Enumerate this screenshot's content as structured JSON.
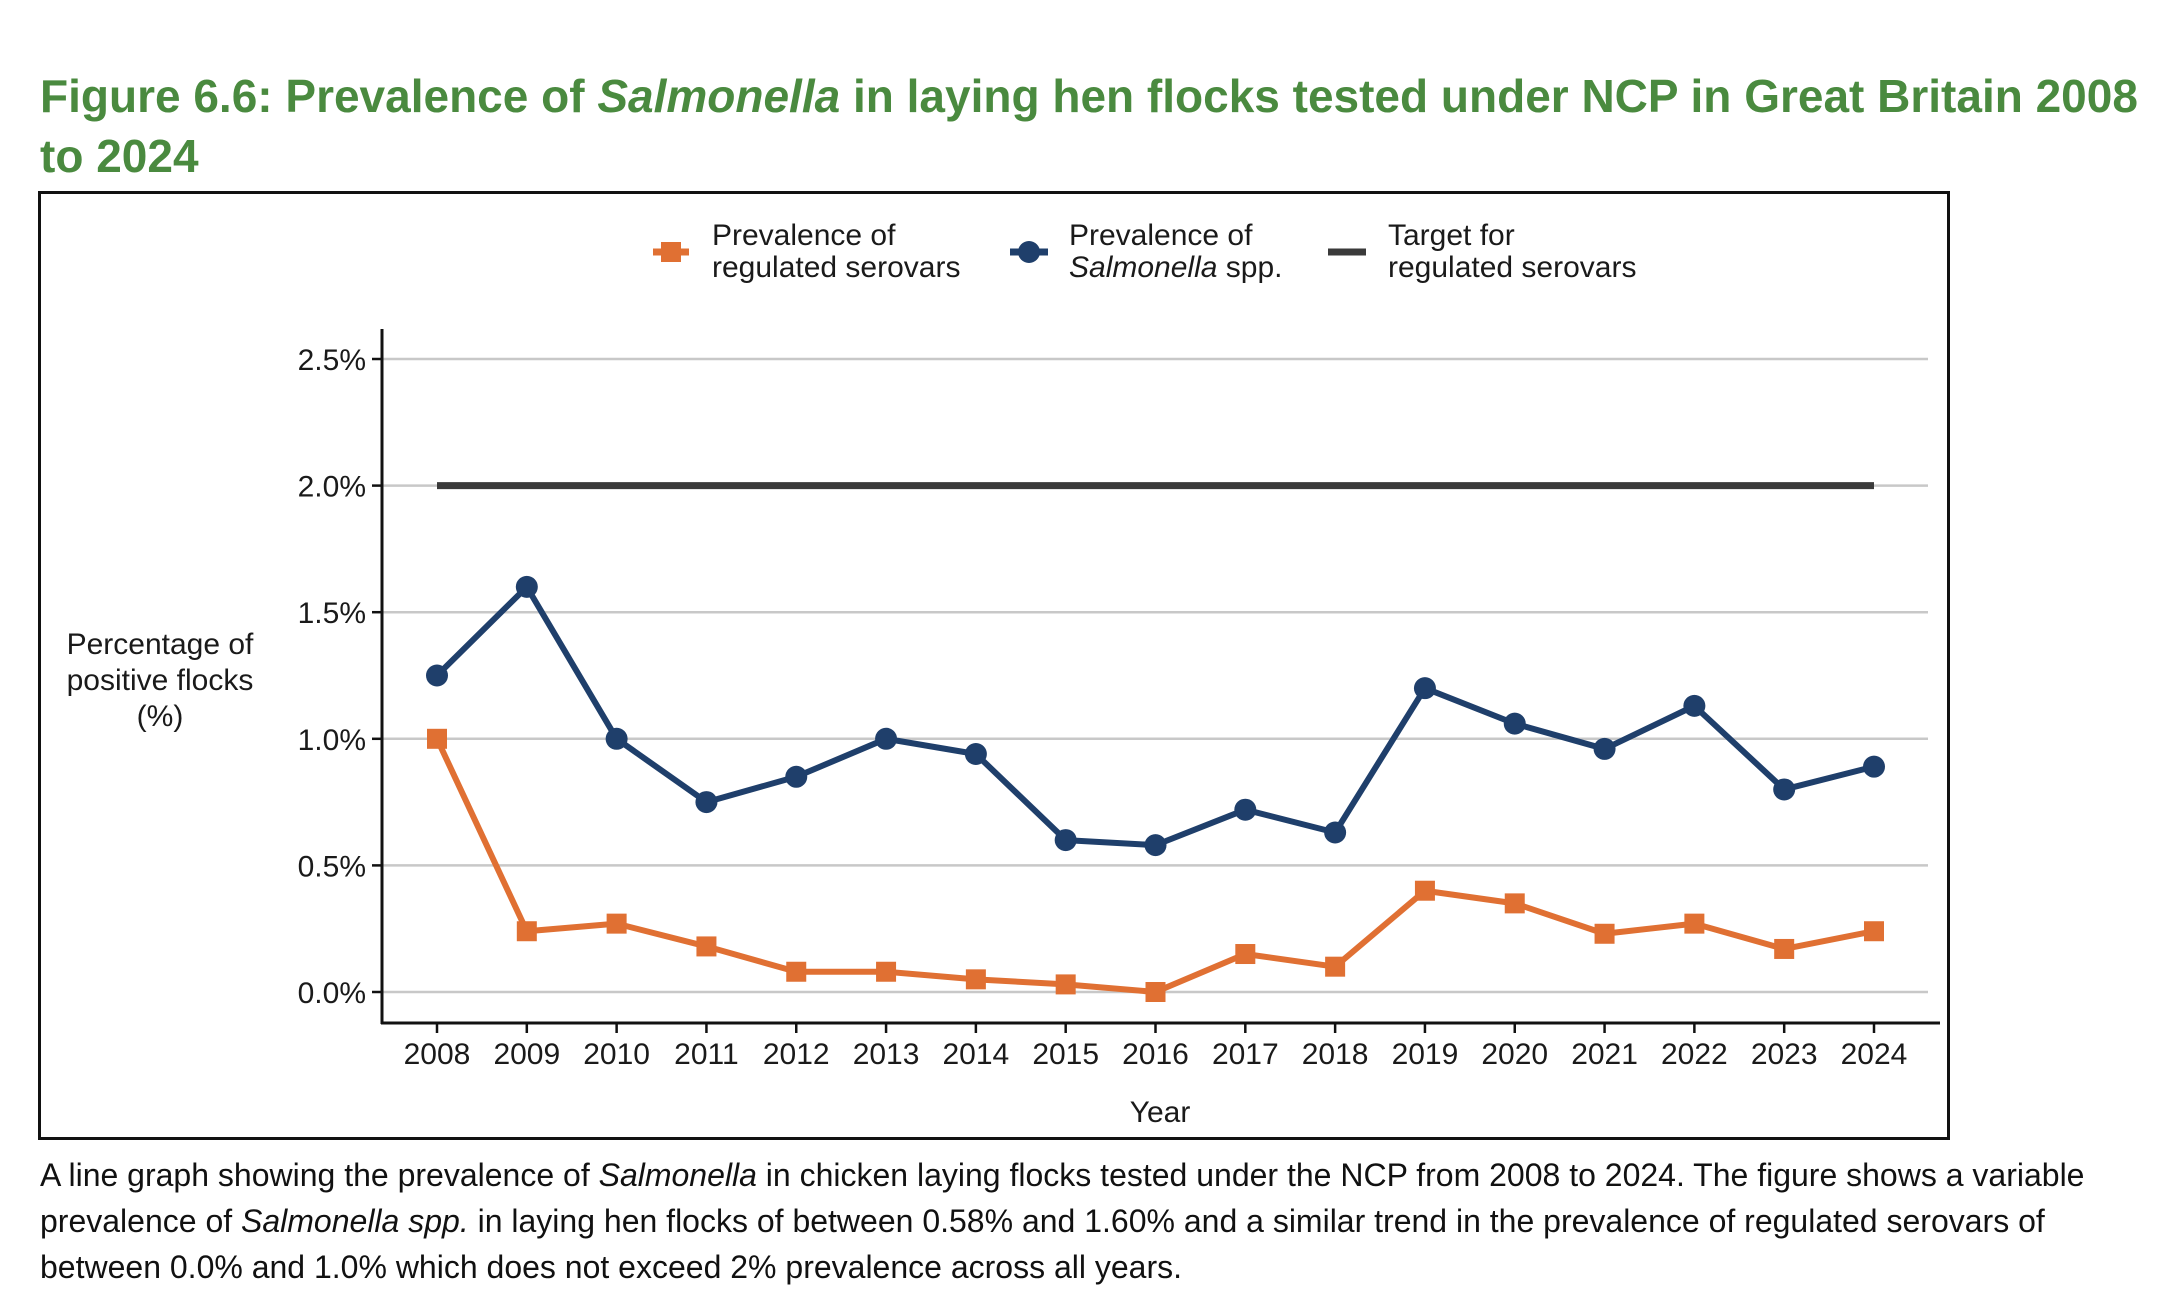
{
  "figure": {
    "title_prefix": "Figure 6.6: Prevalence of ",
    "title_italic": "Salmonella",
    "title_suffix": " in laying hen flocks tested under NCP in Great Britain 2008 to 2024"
  },
  "caption": {
    "part1": "A line graph showing the prevalence of ",
    "italic1": "Salmonella",
    "part2": " in chicken laying flocks tested under the NCP from 2008 to 2024. The figure shows a variable prevalence of ",
    "italic2": "Salmonella spp.",
    "part3": " in laying hen flocks of between 0.58% and 1.60% and a similar trend in the prevalence of regulated serovars of between 0.0% and 1.0% which does not exceed 2% prevalence across all years."
  },
  "colors": {
    "title_green": "#4A8A3F",
    "regulated": "#E07033",
    "salmonella": "#1F3F6B",
    "target": "#3a3a3a",
    "grid": "#c8c8c8"
  },
  "chart_data": {
    "type": "line",
    "title": "Figure 6.6: Prevalence of Salmonella in laying hen flocks tested under NCP in Great Britain 2008 to 2024",
    "xlabel": "Year",
    "ylabel_lines": [
      "Percentage of",
      "positive flocks",
      "(%)"
    ],
    "x": [
      2008,
      2009,
      2010,
      2011,
      2012,
      2013,
      2014,
      2015,
      2016,
      2017,
      2018,
      2019,
      2020,
      2021,
      2022,
      2023,
      2024
    ],
    "x_tick_labels": [
      "2008",
      "2009",
      "2010",
      "2011",
      "2012",
      "2013",
      "2014",
      "2015",
      "2016",
      "2017",
      "2018",
      "2019",
      "2020",
      "2021",
      "2022",
      "2023",
      "2024"
    ],
    "y_ticks": [
      0.0,
      0.5,
      1.0,
      1.5,
      2.0,
      2.5
    ],
    "y_tick_labels": [
      "0.0%",
      "0.5%",
      "1.0%",
      "1.5%",
      "2.0%",
      "2.5%"
    ],
    "ylim": [
      0,
      2.5
    ],
    "grid": "horizontal",
    "legend_position": "top-center",
    "series": [
      {
        "name": "Prevalence of regulated serovars",
        "legend_line1": "Prevalence of",
        "legend_line2": "regulated serovars",
        "marker": "square",
        "color": "#E07033",
        "values": [
          1.0,
          0.24,
          0.27,
          0.18,
          0.08,
          0.08,
          0.05,
          0.03,
          0.0,
          0.15,
          0.1,
          0.4,
          0.35,
          0.23,
          0.27,
          0.17,
          0.24
        ]
      },
      {
        "name": "Prevalence of Salmonella spp.",
        "legend_line1": "Prevalence of",
        "legend_line2_italic": "Salmonella",
        "legend_line2_rest": " spp.",
        "marker": "circle",
        "color": "#1F3F6B",
        "values": [
          1.25,
          1.6,
          1.0,
          0.75,
          0.85,
          1.0,
          0.94,
          0.6,
          0.58,
          0.72,
          0.63,
          1.2,
          1.06,
          0.96,
          1.13,
          0.8,
          0.89
        ]
      },
      {
        "name": "Target for regulated serovars",
        "legend_line1": "Target for",
        "legend_line2": "regulated serovars",
        "marker": "none",
        "color": "#3a3a3a",
        "values": [
          2.0,
          2.0,
          2.0,
          2.0,
          2.0,
          2.0,
          2.0,
          2.0,
          2.0,
          2.0,
          2.0,
          2.0,
          2.0,
          2.0,
          2.0,
          2.0,
          2.0
        ]
      }
    ]
  }
}
